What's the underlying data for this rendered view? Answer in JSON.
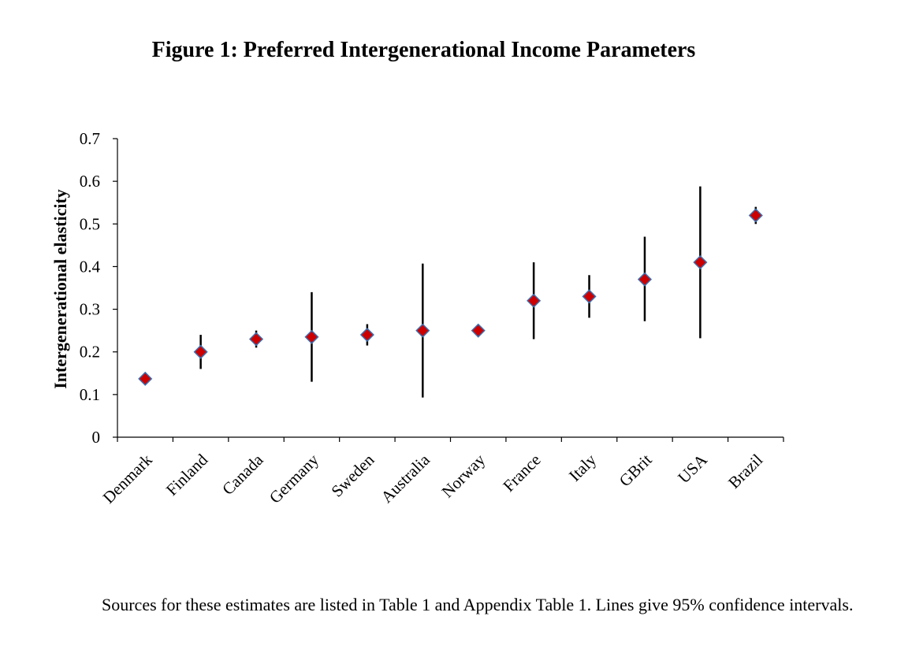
{
  "figure": {
    "title": "Figure 1: Preferred Intergenerational Income Parameters",
    "caption": "Sources for these estimates are listed in Table 1 and Appendix Table 1. Lines give 95% confidence intervals."
  },
  "chart_data": {
    "type": "scatter",
    "title": "Figure 1: Preferred Intergenerational Income Parameters",
    "xlabel": "",
    "ylabel": "Intergenerational elasticity",
    "ylim": [
      0,
      0.7
    ],
    "yticks": [
      "0",
      "0.1",
      "0.2",
      "0.3",
      "0.4",
      "0.5",
      "0.6",
      "0.7"
    ],
    "categories": [
      "Denmark",
      "Finland",
      "Canada",
      "Germany",
      "Sweden",
      "Australia",
      "Norway",
      "France",
      "Italy",
      "GBrit",
      "USA",
      "Brazil"
    ],
    "values": [
      0.137,
      0.2,
      0.23,
      0.235,
      0.24,
      0.25,
      0.25,
      0.32,
      0.33,
      0.37,
      0.41,
      0.52
    ],
    "ci_low": [
      null,
      0.16,
      0.21,
      0.13,
      0.215,
      0.093,
      null,
      0.23,
      0.28,
      0.272,
      0.232,
      0.5
    ],
    "ci_high": [
      null,
      0.24,
      0.25,
      0.34,
      0.265,
      0.407,
      null,
      0.41,
      0.38,
      0.47,
      0.588,
      0.54
    ],
    "grid": false,
    "legend": "none",
    "marker_color": "#cc0000",
    "marker_edge_color": "#3a6fb0",
    "errorbar_color": "#000000"
  }
}
